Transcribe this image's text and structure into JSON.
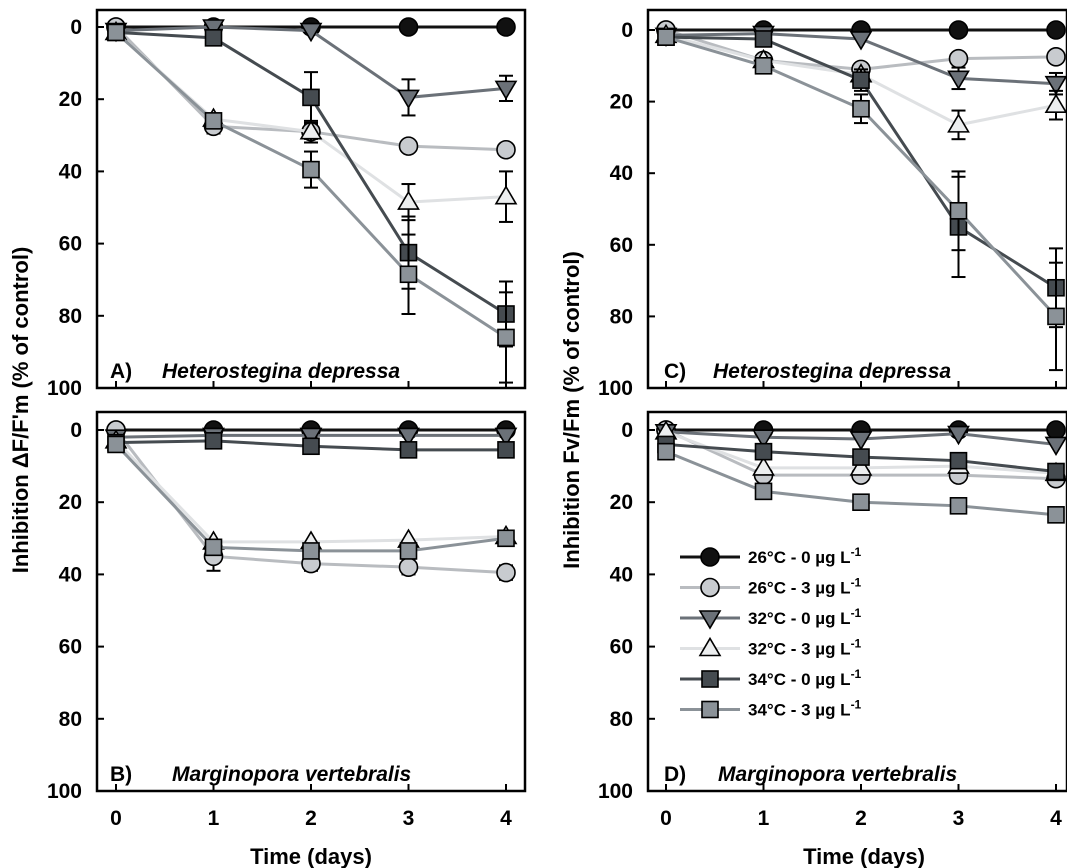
{
  "figure": {
    "ylabel_left": "Inhibition ΔF/F'm (% of control)",
    "ylabel_right": "Inhibition Fv/Fm (% of control)",
    "xlabel": "Time (days)"
  },
  "legend": {
    "entries": [
      {
        "label": "26°C - 0 µg L",
        "sup": "-1"
      },
      {
        "label": "26°C - 3 µg L",
        "sup": "-1"
      },
      {
        "label": "32°C - 0 µg L",
        "sup": "-1"
      },
      {
        "label": "32°C - 3 µg L",
        "sup": "-1"
      },
      {
        "label": "34°C - 0 µg L",
        "sup": "-1"
      },
      {
        "label": "34°C - 3 µg L",
        "sup": "-1"
      }
    ]
  },
  "series_style": [
    {
      "marker": "circle",
      "fill": "#111111",
      "line": "#111111"
    },
    {
      "marker": "circle",
      "fill": "#c8cbcf",
      "line": "#b9bcc0"
    },
    {
      "marker": "triangle-down",
      "fill": "#6b7178",
      "line": "#6b7178"
    },
    {
      "marker": "triangle-up",
      "fill": "#eceeef",
      "line": "#dfe1e3"
    },
    {
      "marker": "square",
      "fill": "#454b50",
      "line": "#454b50"
    },
    {
      "marker": "square",
      "fill": "#8b9298",
      "line": "#8b9298"
    }
  ],
  "chart_data": [
    {
      "id": "A",
      "type": "line",
      "panel_label": "A)",
      "species": "Heterostegina depressa",
      "x": [
        0,
        1,
        2,
        3,
        4
      ],
      "xticks": [
        "0",
        "1",
        "2",
        "3",
        "4"
      ],
      "yticks": [
        "0",
        "20",
        "40",
        "60",
        "80",
        "100"
      ],
      "ylim": [
        0,
        100
      ],
      "y_inverted": true,
      "show_xticklabels": false,
      "series": [
        {
          "name": "26°C - 0 µg L-1",
          "values": [
            0,
            0,
            0,
            0,
            0
          ],
          "err": [
            0,
            0,
            0,
            0,
            0
          ]
        },
        {
          "name": "26°C - 3 µg L-1",
          "values": [
            0,
            27.5,
            29,
            33,
            34
          ],
          "err": [
            0,
            2,
            2,
            0,
            0
          ]
        },
        {
          "name": "32°C - 0 µg L-1",
          "values": [
            1,
            0,
            1,
            19.5,
            17
          ],
          "err": [
            0,
            0,
            0,
            5,
            3.5
          ]
        },
        {
          "name": "32°C - 3 µg L-1",
          "values": [
            1.5,
            25.5,
            29,
            48.5,
            47
          ],
          "err": [
            0,
            0,
            3,
            5,
            7
          ]
        },
        {
          "name": "34°C - 0 µg L-1",
          "values": [
            1.5,
            3,
            19.5,
            62.5,
            79.5
          ],
          "err": [
            0,
            2,
            7,
            10,
            9
          ]
        },
        {
          "name": "34°C - 3 µg L-1",
          "values": [
            1.5,
            26,
            39.5,
            68.5,
            86
          ],
          "err": [
            0,
            2,
            5,
            11,
            12.5
          ]
        }
      ]
    },
    {
      "id": "B",
      "type": "line",
      "panel_label": "B)",
      "species": "Marginopora vertebralis",
      "x": [
        0,
        1,
        2,
        3,
        4
      ],
      "xticks": [
        "0",
        "1",
        "2",
        "3",
        "4"
      ],
      "yticks": [
        "0",
        "20",
        "40",
        "60",
        "80",
        "100"
      ],
      "ylim": [
        0,
        100
      ],
      "y_inverted": true,
      "show_xticklabels": true,
      "series": [
        {
          "name": "26°C - 0 µg L-1",
          "values": [
            0,
            0,
            0,
            0,
            0
          ],
          "err": [
            0,
            0,
            0,
            0,
            0
          ]
        },
        {
          "name": "26°C - 3 µg L-1",
          "values": [
            0,
            35,
            37,
            38,
            39.5
          ],
          "err": [
            0,
            4,
            2,
            2,
            2
          ]
        },
        {
          "name": "32°C - 0 µg L-1",
          "values": [
            2,
            1.5,
            1.5,
            1.5,
            1.5
          ],
          "err": [
            0,
            0,
            0,
            0,
            0
          ]
        },
        {
          "name": "32°C - 3 µg L-1",
          "values": [
            3,
            31,
            31,
            30.5,
            29.5
          ],
          "err": [
            0,
            0,
            0,
            0,
            0
          ]
        },
        {
          "name": "34°C - 0 µg L-1",
          "values": [
            3.5,
            3,
            4.5,
            5.5,
            5.5
          ],
          "err": [
            0,
            0,
            0,
            0,
            0
          ]
        },
        {
          "name": "34°C - 3 µg L-1",
          "values": [
            4,
            32.5,
            33.5,
            33.5,
            30
          ],
          "err": [
            0,
            2,
            2,
            2,
            0
          ]
        }
      ]
    },
    {
      "id": "C",
      "type": "line",
      "panel_label": "C)",
      "species": "Heterostegina depressa",
      "x": [
        0,
        1,
        2,
        3,
        4
      ],
      "xticks": [
        "0",
        "1",
        "2",
        "3",
        "4"
      ],
      "yticks": [
        "0",
        "20",
        "40",
        "60",
        "80",
        "100"
      ],
      "ylim": [
        0,
        100
      ],
      "y_inverted": true,
      "show_xticklabels": false,
      "series": [
        {
          "name": "26°C - 0 µg L-1",
          "values": [
            0,
            0,
            0,
            0,
            0
          ],
          "err": [
            0,
            0,
            0,
            0,
            0
          ]
        },
        {
          "name": "26°C - 3 µg L-1",
          "values": [
            0,
            8.5,
            11,
            8,
            7.5
          ],
          "err": [
            0,
            0,
            0,
            0,
            0
          ]
        },
        {
          "name": "32°C - 0 µg L-1",
          "values": [
            1.5,
            1,
            2.5,
            13.5,
            15
          ],
          "err": [
            0,
            0,
            0,
            3,
            3
          ]
        },
        {
          "name": "32°C - 3 µg L-1",
          "values": [
            1.5,
            8.5,
            12.5,
            26.5,
            21
          ],
          "err": [
            0,
            0,
            0,
            4,
            4
          ]
        },
        {
          "name": "34°C - 0 µg L-1",
          "values": [
            2,
            2.5,
            14,
            55,
            72
          ],
          "err": [
            0,
            0,
            3,
            14,
            11
          ]
        },
        {
          "name": "34°C - 3 µg L-1",
          "values": [
            2,
            10,
            22,
            50.5,
            80
          ],
          "err": [
            0,
            2,
            4,
            11,
            15
          ]
        }
      ]
    },
    {
      "id": "D",
      "type": "line",
      "panel_label": "D)",
      "species": "Marginopora vertebralis",
      "x": [
        0,
        1,
        2,
        3,
        4
      ],
      "xticks": [
        "0",
        "1",
        "2",
        "3",
        "4"
      ],
      "yticks": [
        "0",
        "20",
        "40",
        "60",
        "80",
        "100"
      ],
      "ylim": [
        0,
        100
      ],
      "y_inverted": true,
      "show_xticklabels": true,
      "series": [
        {
          "name": "26°C - 0 µg L-1",
          "values": [
            0,
            0,
            0,
            0,
            0
          ],
          "err": [
            0,
            0,
            0,
            0,
            0
          ]
        },
        {
          "name": "26°C - 3 µg L-1",
          "values": [
            0,
            12.5,
            12.5,
            12.5,
            13.5
          ],
          "err": [
            0,
            0,
            0,
            0,
            0
          ]
        },
        {
          "name": "32°C - 0 µg L-1",
          "values": [
            0.5,
            2,
            2.5,
            1,
            4
          ],
          "err": [
            0,
            0,
            0,
            0,
            0
          ]
        },
        {
          "name": "32°C - 3 µg L-1",
          "values": [
            0.5,
            10.5,
            10.5,
            10,
            12
          ],
          "err": [
            0,
            0,
            0,
            0,
            0
          ]
        },
        {
          "name": "34°C - 0 µg L-1",
          "values": [
            4,
            6,
            7.5,
            8.5,
            11.5
          ],
          "err": [
            0,
            0,
            0,
            0,
            0
          ]
        },
        {
          "name": "34°C - 3 µg L-1",
          "values": [
            6,
            17,
            20,
            21,
            23.5
          ],
          "err": [
            0,
            0,
            0,
            0,
            0
          ]
        }
      ]
    }
  ]
}
